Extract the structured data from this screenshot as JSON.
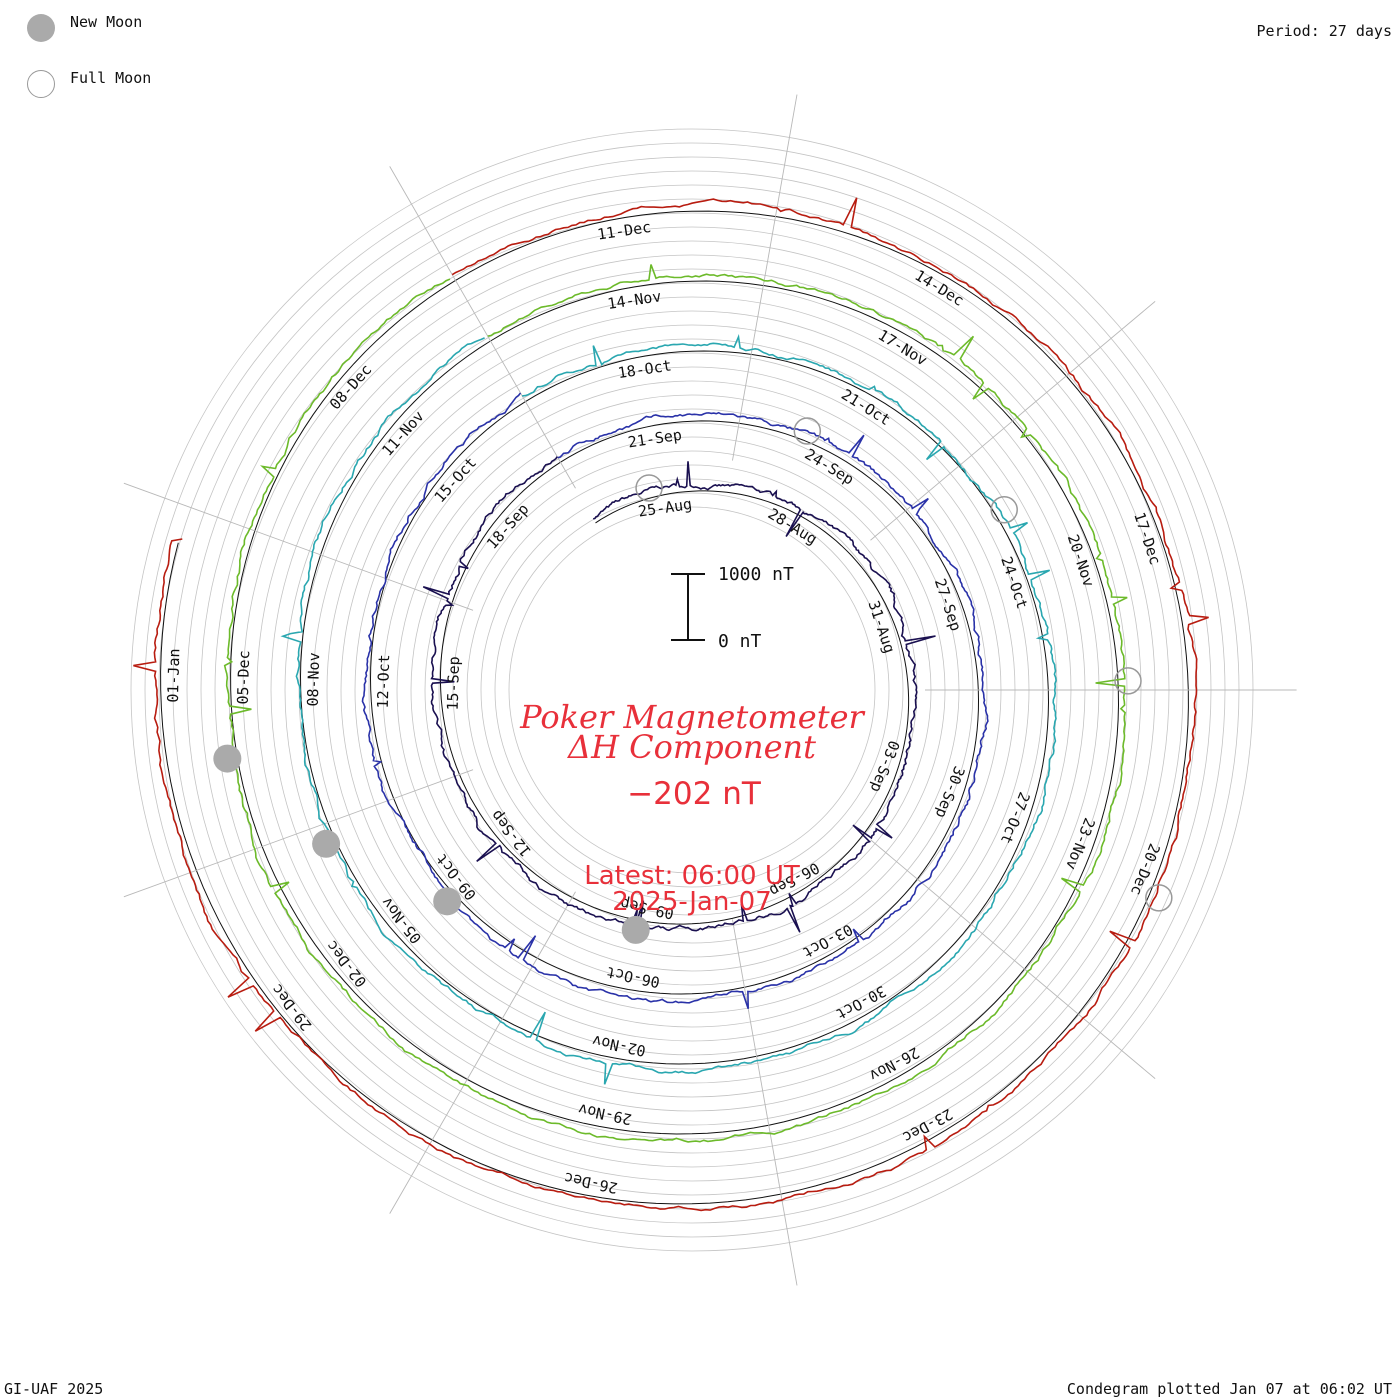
{
  "legend": {
    "new_moon_label": "New Moon",
    "full_moon_label": "Full Moon",
    "new_moon_color": "#aaaaaa",
    "full_moon_color": "#999999"
  },
  "header": {
    "period_label": "Period: 27 days"
  },
  "footer": {
    "credit": "GI-UAF 2025",
    "plotted": "Condegram plotted Jan 07 at 06:02 UT"
  },
  "center": {
    "title_line1": "Poker Magnetometer",
    "title_line2": "ΔH Component",
    "current_value": "−202 nT",
    "latest_line1": "Latest: 06:00 UT",
    "latest_line2": "2025-Jan-07",
    "scale_top": "1000 nT",
    "scale_bottom": "0 nT"
  },
  "chart_data": {
    "type": "line",
    "period_days": 27,
    "scale_nT": [
      0,
      1000
    ],
    "rotations": [
      {
        "color": "#1a1050",
        "labels": [
          "25-Aug",
          "28-Aug",
          "31-Aug",
          "03-Sep",
          "06-Sep",
          "09-Sep",
          "12-Sep",
          "15-Sep",
          "18-Sep"
        ]
      },
      {
        "color": "#2a32a8",
        "labels": [
          "21-Sep",
          "24-Sep",
          "27-Sep",
          "30-Sep",
          "03-Oct",
          "06-Oct",
          "09-Oct",
          "12-Oct",
          "15-Oct"
        ]
      },
      {
        "color": "#2aa7b0",
        "labels": [
          "18-Oct",
          "21-Oct",
          "24-Oct",
          "27-Oct",
          "30-Oct",
          "02-Nov",
          "05-Nov",
          "08-Nov",
          "11-Nov"
        ]
      },
      {
        "color": "#6cba2a",
        "labels": [
          "14-Nov",
          "17-Nov",
          "20-Nov",
          "23-Nov",
          "26-Nov",
          "29-Nov",
          "02-Dec",
          "05-Dec",
          "08-Dec"
        ]
      },
      {
        "color": "#b81c10",
        "labels": [
          "11-Dec",
          "14-Dec",
          "17-Dec",
          "20-Dec",
          "23-Dec",
          "26-Dec",
          "29-Dec",
          "01-Jan"
        ]
      }
    ]
  }
}
